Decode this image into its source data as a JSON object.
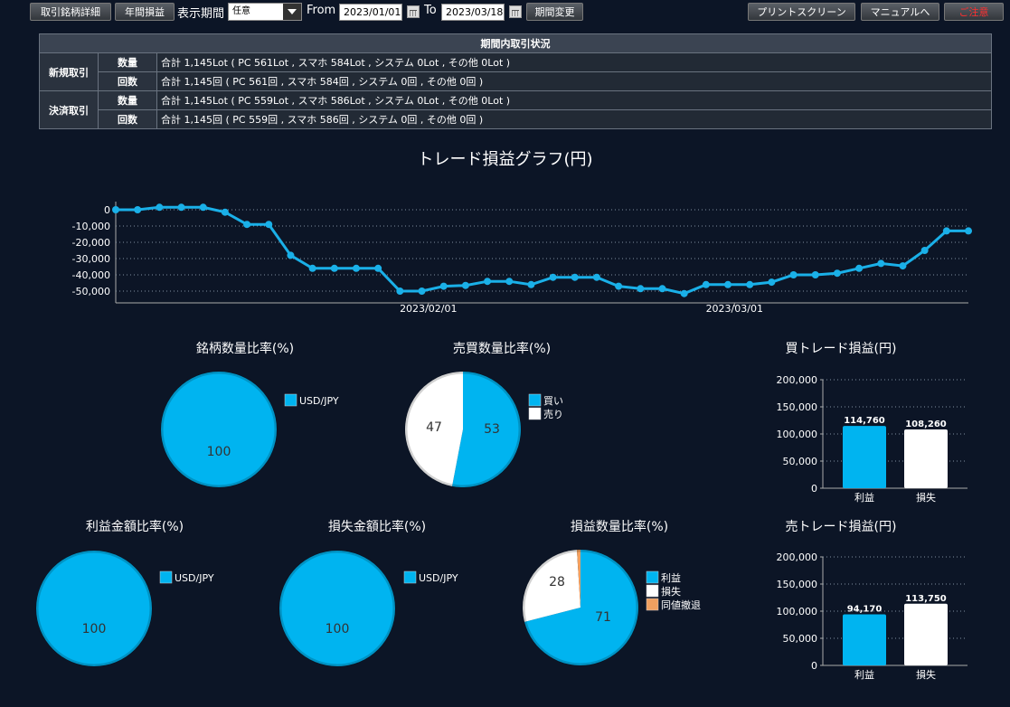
{
  "toolbar": {
    "btn_detail": "取引銘柄詳細",
    "btn_annual": "年間損益",
    "period_label": "表示期間",
    "period_select": "任意",
    "from_label": "From",
    "from_value": "2023/01/01",
    "to_label": "To",
    "to_value": "2023/03/18",
    "btn_change": "期間変更",
    "btn_print": "プリントスクリーン",
    "btn_manual": "マニュアルへ",
    "btn_close": "ご注意"
  },
  "summary": {
    "title": "期間内取引状況",
    "rows": [
      {
        "category": "新規取引",
        "sub": "数量",
        "value": "合計 1,145Lot ( PC 561Lot , スマホ 584Lot , システム 0Lot , その他 0Lot )"
      },
      {
        "category": "",
        "sub": "回数",
        "value": "合計 1,145回 ( PC 561回 , スマホ 584回 , システム 0回 , その他 0回 )"
      },
      {
        "category": "決済取引",
        "sub": "数量",
        "value": "合計 1,145Lot ( PC 559Lot , スマホ 586Lot , システム 0Lot , その他 0Lot )"
      },
      {
        "category": "",
        "sub": "回数",
        "value": "合計 1,145回 ( PC 559回 , スマホ 586回 , システム 0回 , その他 0回 )"
      }
    ]
  },
  "chart_data": [
    {
      "type": "line",
      "title": "トレード損益グラフ(円)",
      "y_ticks": [
        "0",
        "-10,000",
        "-20,000",
        "-30,000",
        "-40,000",
        "-50,000"
      ],
      "x_tick_labels": [
        "2023/02/01",
        "2023/03/01"
      ],
      "ylim": [
        -55000,
        5000
      ],
      "values": [
        0,
        0,
        1500,
        1500,
        1500,
        -1500,
        -9000,
        -9000,
        -28000,
        -36000,
        -36000,
        -36000,
        -36000,
        -50000,
        -50000,
        -47000,
        -46500,
        -44000,
        -44000,
        -46000,
        -41500,
        -41500,
        -41500,
        -47000,
        -48500,
        -48500,
        -51500,
        -46000,
        -46000,
        -46000,
        -44500,
        -40000,
        -40000,
        -39000,
        -36000,
        -33000,
        -34500,
        -25000,
        -13000,
        -13000
      ],
      "color": "#1ab0e8"
    },
    {
      "type": "pie",
      "title": "銘柄数量比率(%)",
      "slices": [
        {
          "label": "USD/JPY",
          "value": 100,
          "color": "#00b4f0"
        }
      ]
    },
    {
      "type": "pie",
      "title": "売買数量比率(%)",
      "slices": [
        {
          "label": "買い",
          "value": 53,
          "color": "#00b4f0"
        },
        {
          "label": "売り",
          "value": 47,
          "color": "#ffffff"
        }
      ]
    },
    {
      "type": "bar",
      "title": "買トレード損益(円)",
      "categories": [
        "利益",
        "損失"
      ],
      "values": [
        114760,
        108260
      ],
      "value_labels": [
        "114,760",
        "108,260"
      ],
      "y_ticks": [
        "200,000",
        "150,000",
        "100,000",
        "50,000",
        "0"
      ],
      "ylim": [
        0,
        200000
      ]
    },
    {
      "type": "pie",
      "title": "利益金額比率(%)",
      "slices": [
        {
          "label": "USD/JPY",
          "value": 100,
          "color": "#00b4f0"
        }
      ]
    },
    {
      "type": "pie",
      "title": "損失金額比率(%)",
      "slices": [
        {
          "label": "USD/JPY",
          "value": 100,
          "color": "#00b4f0"
        }
      ]
    },
    {
      "type": "pie",
      "title": "損益数量比率(%)",
      "slices": [
        {
          "label": "利益",
          "value": 71,
          "color": "#00b4f0"
        },
        {
          "label": "損失",
          "value": 28,
          "color": "#ffffff"
        },
        {
          "label": "同値撤退",
          "value": 1,
          "color": "#f0a060"
        }
      ]
    },
    {
      "type": "bar",
      "title": "売トレード損益(円)",
      "categories": [
        "利益",
        "損失"
      ],
      "values": [
        94170,
        113750
      ],
      "value_labels": [
        "94,170",
        "113,750"
      ],
      "y_ticks": [
        "200,000",
        "150,000",
        "100,000",
        "50,000",
        "0"
      ],
      "ylim": [
        0,
        200000
      ]
    }
  ]
}
